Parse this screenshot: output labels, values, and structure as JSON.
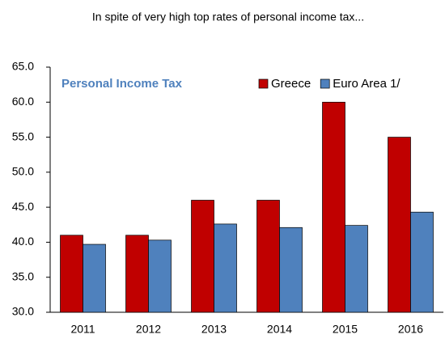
{
  "chart_data": {
    "type": "bar",
    "title": "In spite of very high top rates of personal income tax...",
    "annotation": "Personal Income Tax",
    "categories": [
      "2011",
      "2012",
      "2013",
      "2014",
      "2015",
      "2016"
    ],
    "series": [
      {
        "name": "Greece",
        "color": "#c00000",
        "values": [
          41,
          41,
          46,
          46,
          60,
          55
        ]
      },
      {
        "name": "Euro Area 1/",
        "color": "#4f81bd",
        "values": [
          39.7,
          40.3,
          42.6,
          42.1,
          42.4,
          44.3
        ]
      }
    ],
    "ylim": [
      30,
      65
    ],
    "yticks": [
      {
        "value": 30,
        "label": "30.0"
      },
      {
        "value": 35,
        "label": "35.0"
      },
      {
        "value": 40,
        "label": "40.0"
      },
      {
        "value": 45,
        "label": "45.0"
      },
      {
        "value": 50,
        "label": "50.0"
      },
      {
        "value": 55,
        "label": "55.0"
      },
      {
        "value": 60,
        "label": "60.0"
      },
      {
        "value": 65,
        "label": "65.0"
      }
    ],
    "grid": false,
    "legend": "upper right"
  }
}
